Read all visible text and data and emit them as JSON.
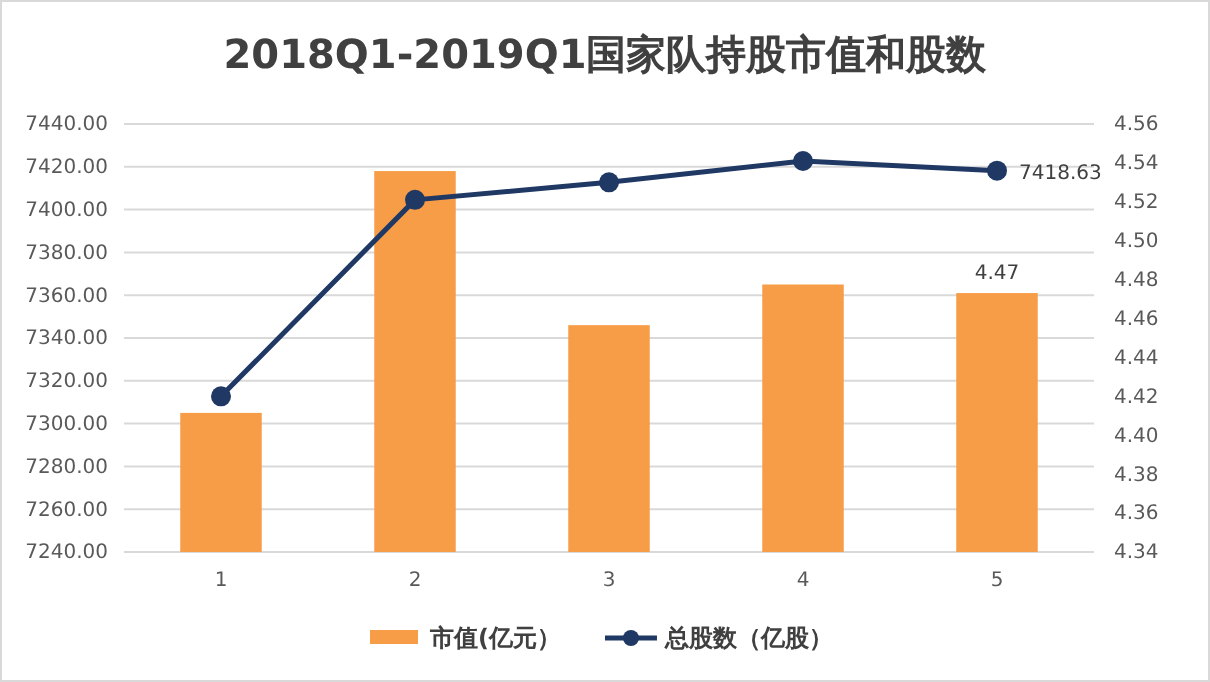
{
  "chart_data": {
    "type": "bar",
    "title": "2018Q1-2019Q1国家队持股市值和股数",
    "categories": [
      "1",
      "2",
      "3",
      "4",
      "5"
    ],
    "series": [
      {
        "name": "市值(亿元）",
        "color": "#f79c47",
        "values": [
          7305,
          7418,
          7346,
          7365,
          7361
        ]
      },
      {
        "name": "总股数（亿股）",
        "type": "line",
        "axis": "y2",
        "color": "#1f3864",
        "marker": "circle",
        "values": [
          4.42,
          4.521,
          4.53,
          4.541,
          4.536
        ]
      }
    ],
    "ylim": [
      7240,
      7440
    ],
    "yticks": [
      {
        "value": 7240,
        "label": "7240.00"
      },
      {
        "value": 7260,
        "label": "7260.00"
      },
      {
        "value": 7280,
        "label": "7280.00"
      },
      {
        "value": 7300,
        "label": "7300.00"
      },
      {
        "value": 7320,
        "label": "7320.00"
      },
      {
        "value": 7340,
        "label": "7340.00"
      },
      {
        "value": 7360,
        "label": "7360.00"
      },
      {
        "value": 7380,
        "label": "7380.00"
      },
      {
        "value": 7400,
        "label": "7400.00"
      },
      {
        "value": 7420,
        "label": "7420.00"
      },
      {
        "value": 7440,
        "label": "7440.00"
      }
    ],
    "y2lim": [
      4.34,
      4.56
    ],
    "y2ticks": [
      4.34,
      4.36,
      4.38,
      {
        "value": 4.4,
        "label": "4.40"
      },
      4.42,
      4.44,
      4.46,
      4.48,
      {
        "value": 4.5,
        "label": "4.50"
      },
      4.52,
      4.54,
      4.56
    ],
    "grid": "y",
    "legend": "bottom",
    "annotations": [
      {
        "text": "4.47",
        "x": "5",
        "y": 7361
      },
      "7418.63"
    ]
  }
}
